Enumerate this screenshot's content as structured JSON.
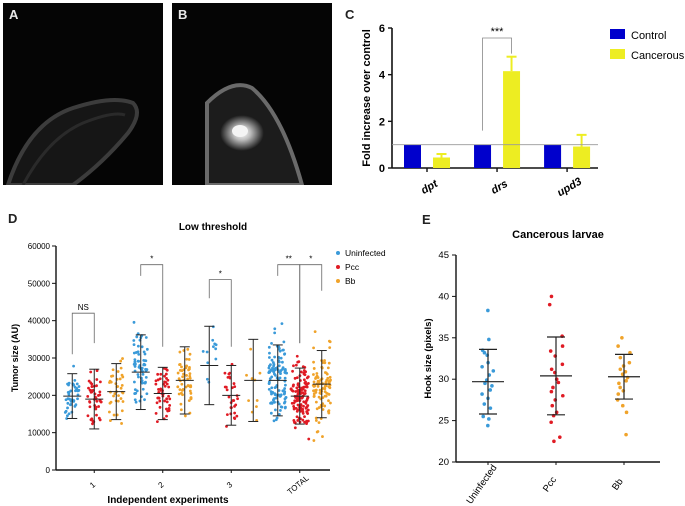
{
  "panels": {
    "a": "A",
    "b": "B",
    "c": "C",
    "d": "D",
    "e": "E"
  },
  "chart_data": [
    {
      "id": "C",
      "type": "bar",
      "title": "",
      "ylabel": "Fold increase over control",
      "xlabel": "",
      "ylim": [
        0,
        6
      ],
      "yticks": [
        0,
        2,
        4,
        6
      ],
      "categories": [
        "dpt",
        "drs",
        "upd3"
      ],
      "series": [
        {
          "name": "Control",
          "color": "#0000cc",
          "values": [
            1.0,
            1.0,
            1.0
          ],
          "errors": [
            0,
            0,
            0
          ]
        },
        {
          "name": "Cancerous",
          "color": "#eded22",
          "values": [
            0.45,
            4.15,
            0.92
          ],
          "errors": [
            0.15,
            0.62,
            0.5
          ]
        }
      ],
      "reference_line": 1,
      "significance": [
        {
          "category": "drs",
          "label": "***"
        }
      ],
      "legend": "right"
    },
    {
      "id": "D",
      "type": "scatter",
      "title": "Low threshold",
      "ylabel": "Tumor size (AU)",
      "xlabel": "Independent experiments",
      "ylim": [
        0,
        60000
      ],
      "yticks": [
        0,
        10000,
        20000,
        30000,
        40000,
        50000,
        60000
      ],
      "groups": [
        "1",
        "2",
        "3",
        "TOTAL"
      ],
      "legend_position": "top-right",
      "series": [
        {
          "name": "Uninfected",
          "color": "#3a9ad9",
          "summary": [
            {
              "mean": 19800,
              "sd": 6000
            },
            {
              "mean": 26200,
              "sd": 10000
            },
            {
              "mean": 28000,
              "sd": 10500
            },
            {
              "mean": 24000,
              "sd": 9500
            }
          ],
          "n": [
            45,
            65,
            12,
            122
          ]
        },
        {
          "name": "Pcc",
          "color": "#e01b24",
          "summary": [
            {
              "mean": 19000,
              "sd": 8000
            },
            {
              "mean": 20500,
              "sd": 7000
            },
            {
              "mean": 20000,
              "sd": 8000
            },
            {
              "mean": 19800,
              "sd": 7500
            }
          ],
          "n": [
            50,
            48,
            30,
            128
          ]
        },
        {
          "name": "Bb",
          "color": "#f0a32a",
          "summary": [
            {
              "mean": 21000,
              "sd": 7500
            },
            {
              "mean": 24000,
              "sd": 9000
            },
            {
              "mean": 24000,
              "sd": 11000
            },
            {
              "mean": 23000,
              "sd": 9000
            }
          ],
          "n": [
            38,
            52,
            10,
            100
          ]
        }
      ],
      "significance": [
        {
          "group": "1",
          "label": "NS"
        },
        {
          "group": "2",
          "label": "*"
        },
        {
          "group": "3",
          "label": "*"
        },
        {
          "group": "TOTAL",
          "label": "**"
        },
        {
          "group": "TOTAL",
          "label": "*"
        }
      ]
    },
    {
      "id": "E",
      "type": "scatter",
      "title": "Cancerous larvae",
      "ylabel": "Hook size (pixels)",
      "xlabel": "",
      "ylim": [
        20,
        45
      ],
      "yticks": [
        20,
        25,
        30,
        35,
        40,
        45
      ],
      "categories": [
        "Uninfected",
        "Pcc",
        "Bb"
      ],
      "series": [
        {
          "name": "Uninfected",
          "color": "#3a9ad9",
          "mean": 29.7,
          "sd": 3.9,
          "values": [
            38.3,
            34.8,
            33.5,
            33.2,
            32.9,
            32.0,
            31.5,
            31.0,
            30.5,
            29.9,
            29.5,
            29.2,
            28.7,
            28.2,
            27.7,
            27.0,
            26.5,
            25.5,
            25.2,
            24.4
          ]
        },
        {
          "name": "Pcc",
          "color": "#e01b24",
          "mean": 30.4,
          "sd": 4.7,
          "values": [
            40.0,
            39.0,
            35.2,
            34.0,
            33.4,
            32.8,
            31.8,
            31.2,
            30.8,
            30.0,
            29.6,
            29.0,
            28.5,
            28.0,
            27.5,
            26.8,
            26.0,
            25.6,
            24.8,
            23.0,
            22.5
          ]
        },
        {
          "name": "Bb",
          "color": "#f0a32a",
          "mean": 30.3,
          "sd": 2.7,
          "values": [
            35.0,
            34.0,
            33.2,
            32.6,
            32.0,
            31.6,
            31.2,
            30.9,
            30.6,
            30.2,
            29.8,
            29.5,
            29.0,
            28.6,
            28.2,
            27.5,
            26.8,
            26.0,
            23.3
          ]
        }
      ]
    }
  ]
}
